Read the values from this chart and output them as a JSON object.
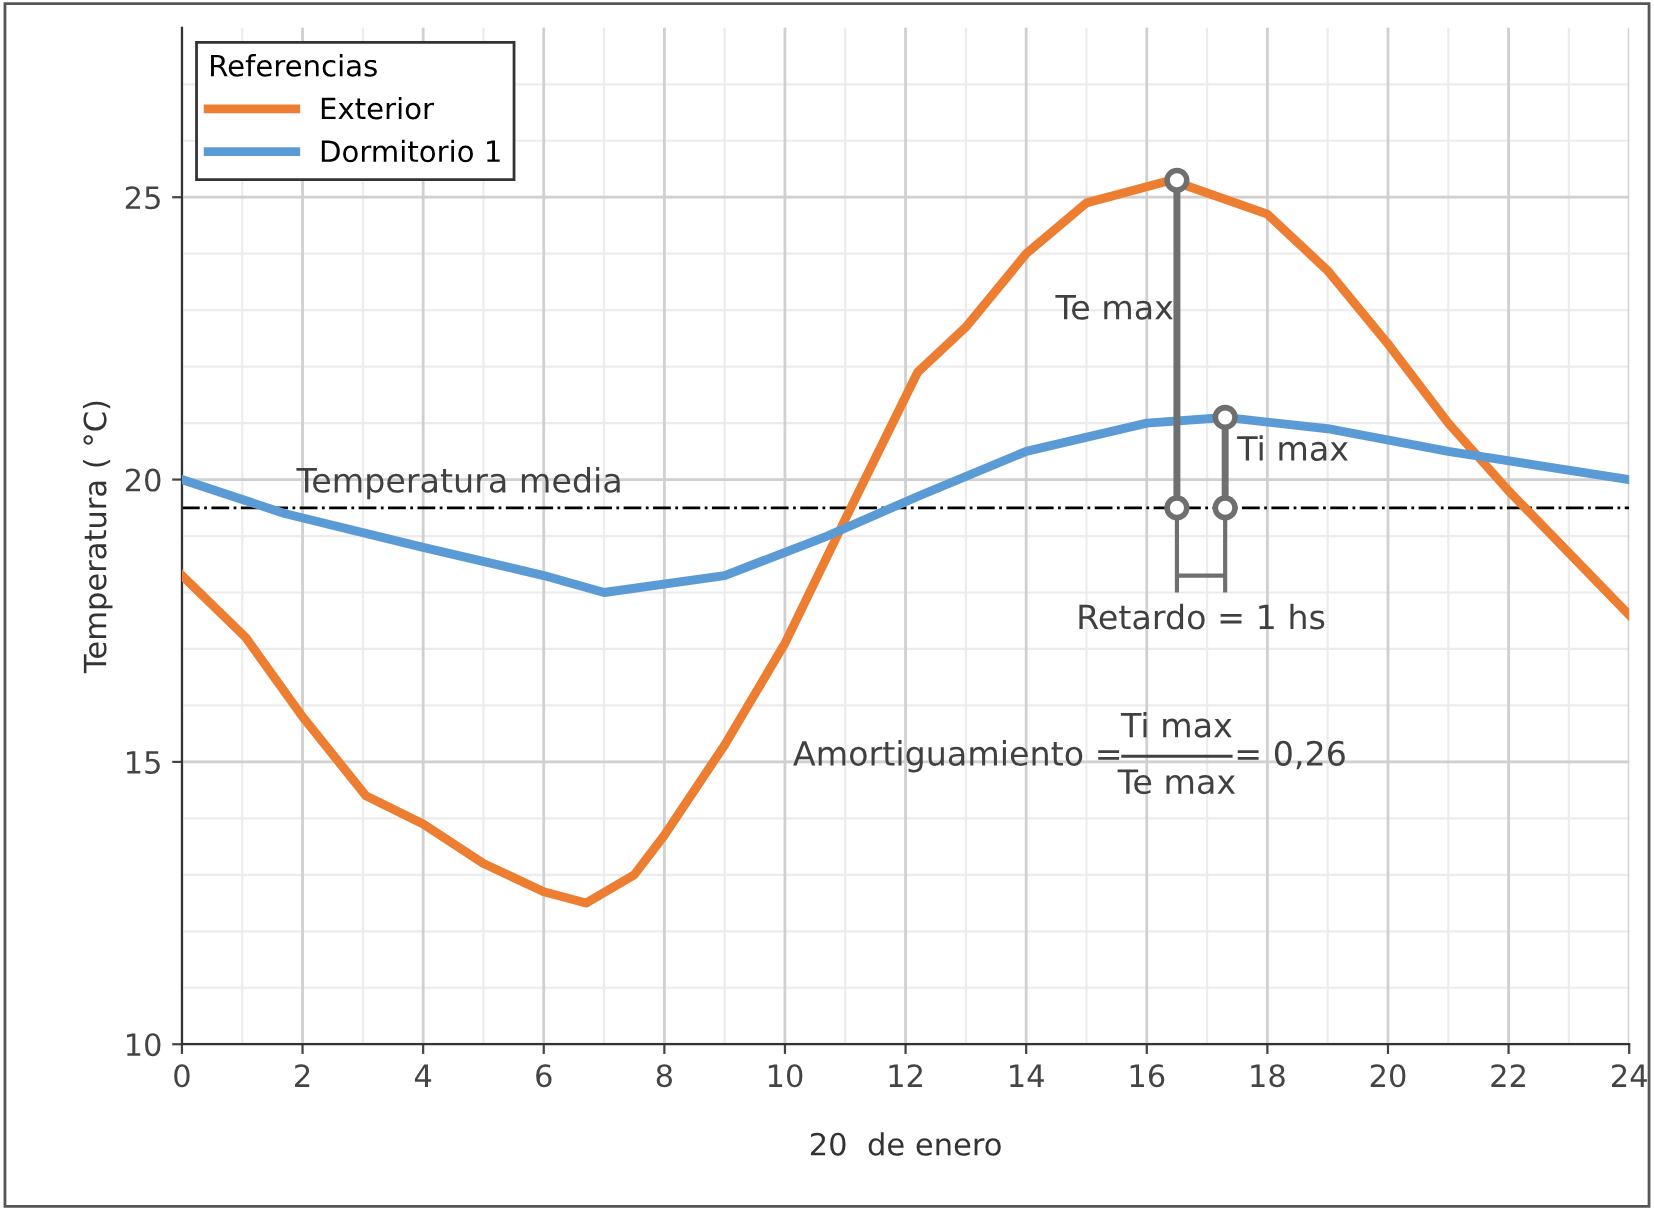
{
  "chart_data": {
    "type": "line",
    "xlabel": "20  de enero",
    "ylabel": "Temperatura ( °C)",
    "legend_title": "Referencias",
    "legend": "top left",
    "grid": true,
    "marker": "none",
    "line_style": "solid",
    "xlim": [
      0,
      24
    ],
    "xticks": [
      0,
      2,
      4,
      6,
      8,
      10,
      12,
      14,
      16,
      18,
      20,
      22,
      24
    ],
    "ylim": [
      10,
      28
    ],
    "yticks": [
      10,
      15,
      20,
      25
    ],
    "series": [
      {
        "name": "Exterior",
        "color": "#ed7d31",
        "x": [
          0,
          1.06,
          2,
          3.05,
          4,
          5,
          6,
          6.7,
          7.5,
          8,
          9,
          10,
          11,
          12.2,
          13,
          14,
          15,
          16.4,
          18,
          19,
          20,
          21,
          22,
          23,
          24
        ],
        "values": [
          18.3,
          17.2,
          15.8,
          14.4,
          13.9,
          13.2,
          12.7,
          12.5,
          13.0,
          13.7,
          15.3,
          17.1,
          19.3,
          21.9,
          22.7,
          24.0,
          24.9,
          25.3,
          24.7,
          23.7,
          22.4,
          21.0,
          19.8,
          18.7,
          17.6
        ]
      },
      {
        "name": "Dormitorio 1",
        "color": "#5b9bd5",
        "x": [
          0,
          1.7,
          4,
          6,
          7,
          9,
          10.7,
          12.2,
          14,
          16,
          17.3,
          19,
          21,
          24
        ],
        "values": [
          20.0,
          19.4,
          18.8,
          18.3,
          18.0,
          18.3,
          19.0,
          19.7,
          20.5,
          21.0,
          21.1,
          20.9,
          20.5,
          20.0
        ]
      },
      {
        "type": "scatter",
        "color": "#6f6f6f",
        "marker": "circle",
        "x": [
          16.5,
          16.5,
          17.3,
          17.3
        ],
        "values": [
          25.3,
          19.5,
          21.1,
          19.5
        ]
      }
    ],
    "ref_lines": [
      {
        "axis": "y",
        "value": 19.5,
        "label": "Temperatura media",
        "color": "#000000",
        "line_style": "dashdot"
      }
    ],
    "annotations": [
      "Te max",
      {
        "text": "Ti max",
        "x": 17.3,
        "y": 21.1
      },
      {
        "text": "Retardo = 1 hs",
        "x": 16.9,
        "y": 19.5
      },
      "Amortiguamiento =",
      "Ti max",
      "Te max",
      "= 0,26"
    ]
  }
}
